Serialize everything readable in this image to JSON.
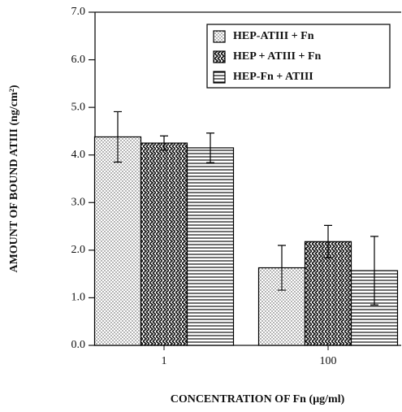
{
  "chart_data": {
    "type": "bar",
    "y_label": "AMOUNT OF BOUND ATIII (ng/cm²)",
    "x_label": "CONCENTRATION OF Fn (µg/ml)",
    "categories": [
      "1",
      "100"
    ],
    "series": [
      {
        "name": "HEP-ATIII + Fn",
        "color": "#000000",
        "pattern": "dots",
        "values": [
          4.38,
          1.63
        ],
        "errors": [
          0.53,
          0.47
        ]
      },
      {
        "name": "HEP + ATIII + Fn",
        "color": "#000000",
        "pattern": "zigzag",
        "values": [
          4.25,
          2.18
        ],
        "errors": [
          0.15,
          0.34
        ]
      },
      {
        "name": "HEP-Fn + ATIII",
        "color": "#000000",
        "pattern": "hlines",
        "values": [
          4.15,
          1.57
        ],
        "errors": [
          0.31,
          0.72
        ]
      }
    ],
    "ylim": [
      0,
      7
    ],
    "yticks": [
      {
        "value": 0,
        "label": "0.0"
      },
      {
        "value": 1,
        "label": "1.0"
      },
      {
        "value": 2,
        "label": "2.0"
      },
      {
        "value": 3,
        "label": "3.0"
      },
      {
        "value": 4,
        "label": "4.0"
      },
      {
        "value": 5,
        "label": "5.0"
      },
      {
        "value": 6,
        "label": "6.0"
      },
      {
        "value": 7,
        "label": "7.0"
      }
    ],
    "legend": "upper right"
  }
}
